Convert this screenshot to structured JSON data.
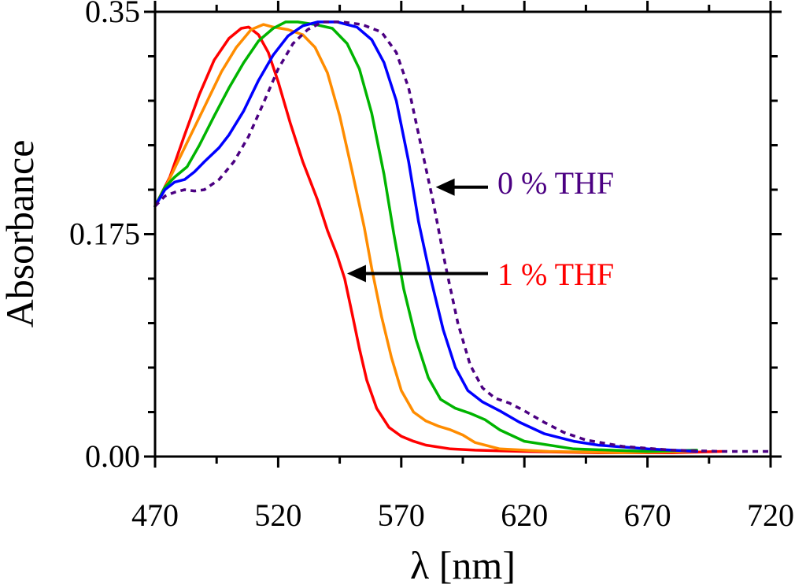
{
  "chart_data": {
    "type": "line",
    "title": "",
    "xlabel": "λ [nm]",
    "ylabel": "Absorbance",
    "xlim": [
      470,
      720
    ],
    "ylim": [
      0,
      0.35
    ],
    "x_ticks": [
      470,
      520,
      570,
      620,
      670,
      720
    ],
    "x_tick_labels": [
      "470",
      "520",
      "570",
      "620",
      "670",
      "720"
    ],
    "y_ticks": [
      0,
      0.175,
      0.35
    ],
    "y_tick_labels": [
      "0.00",
      "0.175",
      "0.35"
    ],
    "grid": false,
    "legend": "none",
    "series": [
      {
        "name": "1 % THF",
        "color": "#ff0000",
        "dash": "solid",
        "points": [
          [
            470,
            0.197
          ],
          [
            476,
            0.22
          ],
          [
            482,
            0.253
          ],
          [
            488,
            0.285
          ],
          [
            494,
            0.312
          ],
          [
            500,
            0.329
          ],
          [
            505,
            0.337
          ],
          [
            508,
            0.338
          ],
          [
            512,
            0.332
          ],
          [
            516,
            0.318
          ],
          [
            520,
            0.295
          ],
          [
            525,
            0.262
          ],
          [
            530,
            0.232
          ],
          [
            536,
            0.202
          ],
          [
            540,
            0.178
          ],
          [
            544,
            0.158
          ],
          [
            547,
            0.14
          ],
          [
            550,
            0.113
          ],
          [
            553,
            0.085
          ],
          [
            556,
            0.06
          ],
          [
            560,
            0.038
          ],
          [
            565,
            0.023
          ],
          [
            570,
            0.016
          ],
          [
            575,
            0.012
          ],
          [
            580,
            0.009
          ],
          [
            590,
            0.006
          ],
          [
            600,
            0.005
          ],
          [
            620,
            0.004
          ],
          [
            650,
            0.003
          ],
          [
            680,
            0.003
          ],
          [
            700,
            0.004
          ]
        ]
      },
      {
        "name": "orange",
        "color": "#ff8c00",
        "dash": "solid",
        "points": [
          [
            470,
            0.197
          ],
          [
            475,
            0.215
          ],
          [
            482,
            0.243
          ],
          [
            490,
            0.275
          ],
          [
            497,
            0.303
          ],
          [
            503,
            0.322
          ],
          [
            509,
            0.336
          ],
          [
            514,
            0.34
          ],
          [
            518,
            0.338
          ],
          [
            524,
            0.336
          ],
          [
            530,
            0.332
          ],
          [
            535,
            0.322
          ],
          [
            540,
            0.302
          ],
          [
            545,
            0.268
          ],
          [
            550,
            0.225
          ],
          [
            555,
            0.18
          ],
          [
            558,
            0.148
          ],
          [
            562,
            0.11
          ],
          [
            566,
            0.078
          ],
          [
            570,
            0.052
          ],
          [
            575,
            0.035
          ],
          [
            580,
            0.028
          ],
          [
            585,
            0.024
          ],
          [
            590,
            0.021
          ],
          [
            595,
            0.017
          ],
          [
            600,
            0.011
          ],
          [
            610,
            0.006
          ],
          [
            630,
            0.004
          ],
          [
            660,
            0.003
          ],
          [
            690,
            0.004
          ]
        ]
      },
      {
        "name": "green",
        "color": "#00b400",
        "dash": "solid",
        "points": [
          [
            470,
            0.197
          ],
          [
            474,
            0.212
          ],
          [
            478,
            0.22
          ],
          [
            483,
            0.228
          ],
          [
            488,
            0.245
          ],
          [
            494,
            0.268
          ],
          [
            500,
            0.29
          ],
          [
            506,
            0.31
          ],
          [
            512,
            0.327
          ],
          [
            518,
            0.337
          ],
          [
            523,
            0.342
          ],
          [
            528,
            0.342
          ],
          [
            535,
            0.34
          ],
          [
            542,
            0.337
          ],
          [
            548,
            0.325
          ],
          [
            553,
            0.305
          ],
          [
            558,
            0.27
          ],
          [
            563,
            0.222
          ],
          [
            567,
            0.175
          ],
          [
            571,
            0.132
          ],
          [
            576,
            0.092
          ],
          [
            581,
            0.062
          ],
          [
            586,
            0.045
          ],
          [
            592,
            0.038
          ],
          [
            598,
            0.034
          ],
          [
            604,
            0.029
          ],
          [
            610,
            0.021
          ],
          [
            620,
            0.012
          ],
          [
            640,
            0.006
          ],
          [
            670,
            0.004
          ],
          [
            690,
            0.005
          ]
        ]
      },
      {
        "name": "blue",
        "color": "#0000ff",
        "dash": "solid",
        "points": [
          [
            470,
            0.197
          ],
          [
            474,
            0.21
          ],
          [
            478,
            0.216
          ],
          [
            482,
            0.218
          ],
          [
            486,
            0.224
          ],
          [
            490,
            0.232
          ],
          [
            496,
            0.243
          ],
          [
            500,
            0.253
          ],
          [
            506,
            0.272
          ],
          [
            512,
            0.296
          ],
          [
            518,
            0.316
          ],
          [
            524,
            0.331
          ],
          [
            530,
            0.339
          ],
          [
            536,
            0.342
          ],
          [
            544,
            0.342
          ],
          [
            552,
            0.338
          ],
          [
            558,
            0.328
          ],
          [
            563,
            0.31
          ],
          [
            568,
            0.28
          ],
          [
            573,
            0.232
          ],
          [
            577,
            0.185
          ],
          [
            582,
            0.14
          ],
          [
            587,
            0.1
          ],
          [
            592,
            0.07
          ],
          [
            597,
            0.052
          ],
          [
            603,
            0.043
          ],
          [
            610,
            0.036
          ],
          [
            618,
            0.027
          ],
          [
            628,
            0.018
          ],
          [
            640,
            0.012
          ],
          [
            650,
            0.009
          ],
          [
            670,
            0.006
          ],
          [
            690,
            0.004
          ]
        ]
      },
      {
        "name": "0 % THF",
        "color": "#4b0082",
        "dash": "dashed",
        "points": [
          [
            470,
            0.197
          ],
          [
            474,
            0.205
          ],
          [
            478,
            0.208
          ],
          [
            482,
            0.21
          ],
          [
            486,
            0.209
          ],
          [
            490,
            0.21
          ],
          [
            496,
            0.218
          ],
          [
            502,
            0.232
          ],
          [
            508,
            0.252
          ],
          [
            514,
            0.278
          ],
          [
            520,
            0.305
          ],
          [
            526,
            0.325
          ],
          [
            532,
            0.336
          ],
          [
            538,
            0.342
          ],
          [
            546,
            0.342
          ],
          [
            554,
            0.34
          ],
          [
            562,
            0.334
          ],
          [
            568,
            0.318
          ],
          [
            573,
            0.29
          ],
          [
            578,
            0.245
          ],
          [
            583,
            0.2
          ],
          [
            588,
            0.15
          ],
          [
            593,
            0.105
          ],
          [
            598,
            0.072
          ],
          [
            603,
            0.054
          ],
          [
            608,
            0.046
          ],
          [
            614,
            0.042
          ],
          [
            620,
            0.036
          ],
          [
            628,
            0.027
          ],
          [
            636,
            0.019
          ],
          [
            645,
            0.013
          ],
          [
            660,
            0.008
          ],
          [
            680,
            0.005
          ],
          [
            700,
            0.004
          ],
          [
            720,
            0.004
          ]
        ]
      }
    ],
    "annotations": [
      {
        "text": "0 % THF",
        "color": "#4b0082",
        "arrow_to": [
          584,
          0.212
        ]
      },
      {
        "text": "1 % THF",
        "color": "#ff0000",
        "arrow_to": [
          548,
          0.144
        ]
      }
    ]
  }
}
